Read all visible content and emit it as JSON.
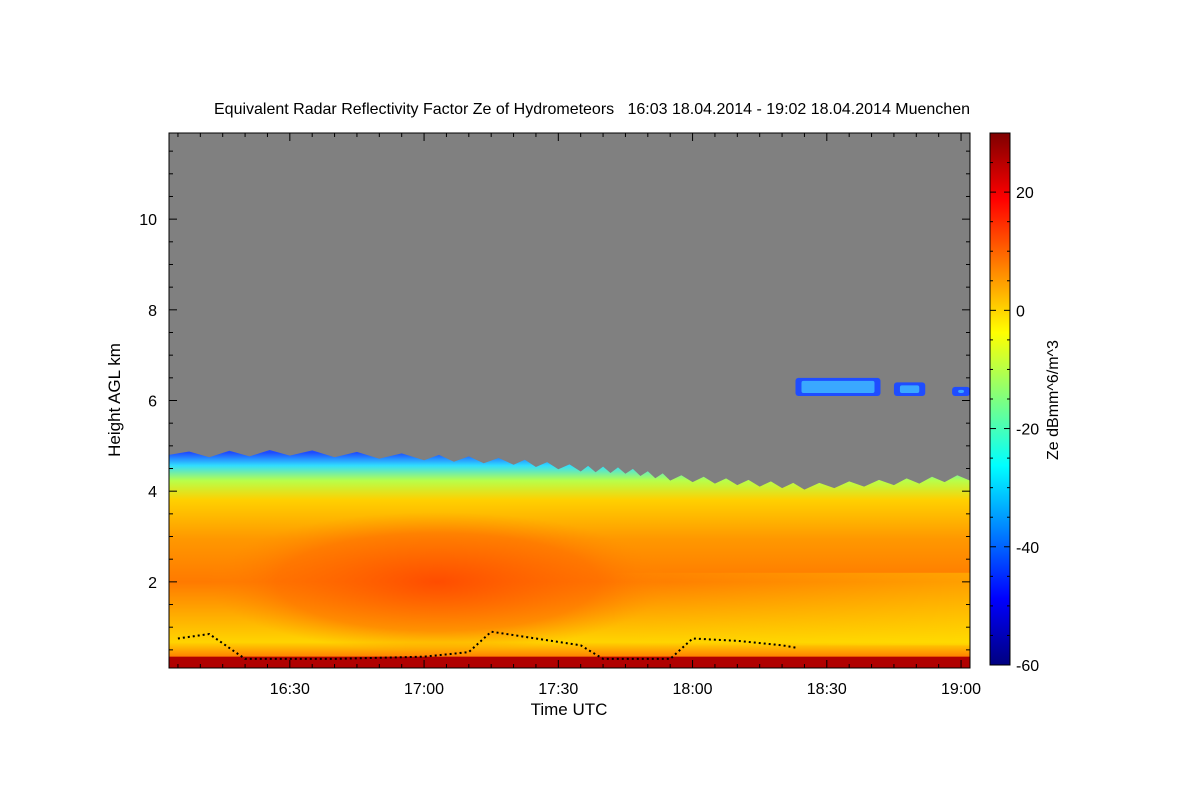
{
  "chart_data": {
    "type": "heatmap",
    "title": "Equivalent Radar Reflectivity Factor Ze of Hydrometeors   16:03 18.04.2014 - 19:02 18.04.2014 Muenchen",
    "xlabel": "Time UTC",
    "ylabel": "Height AGL km",
    "colorbar_label": "Ze dBmm^6/m^3",
    "xlim": [
      "16:03",
      "19:02"
    ],
    "ylim": [
      0.1,
      11.9
    ],
    "x_ticks": [
      "16:30",
      "17:00",
      "17:30",
      "18:00",
      "18:30",
      "19:00"
    ],
    "y_ticks": [
      "2",
      "4",
      "6",
      "8",
      "10"
    ],
    "colorbar_ticks": [
      "20",
      "0",
      "-20",
      "-40",
      "-60"
    ],
    "colorbar_range": [
      -60,
      30
    ],
    "background_color": "#808080",
    "colormap": [
      "#00007f",
      "#0000ff",
      "#007fff",
      "#00ffff",
      "#7fff7f",
      "#ffff00",
      "#ff7f00",
      "#ff0000",
      "#7f0000"
    ],
    "echo_top_km": [
      {
        "t": "16:03",
        "h": 4.8
      },
      {
        "t": "16:30",
        "h": 4.85
      },
      {
        "t": "17:00",
        "h": 4.75
      },
      {
        "t": "17:20",
        "h": 4.65
      },
      {
        "t": "17:35",
        "h": 4.5
      },
      {
        "t": "17:45",
        "h": 4.45
      },
      {
        "t": "17:55",
        "h": 4.3
      },
      {
        "t": "18:10",
        "h": 4.2
      },
      {
        "t": "18:25",
        "h": 4.1
      },
      {
        "t": "18:45",
        "h": 4.2
      },
      {
        "t": "19:02",
        "h": 4.3
      }
    ],
    "upper_cloud": [
      {
        "start": "18:23",
        "end": "18:42",
        "base_km": 6.1,
        "top_km": 6.5
      },
      {
        "start": "18:45",
        "end": "18:52",
        "base_km": 6.1,
        "top_km": 6.4
      },
      {
        "start": "18:58",
        "end": "19:02",
        "base_km": 6.1,
        "top_km": 6.3
      }
    ],
    "cloud_base_km": [
      {
        "t": "16:05",
        "h": 0.75
      },
      {
        "t": "16:12",
        "h": 0.85
      },
      {
        "t": "16:20",
        "h": 0.3
      },
      {
        "t": "16:40",
        "h": 0.3
      },
      {
        "t": "17:00",
        "h": 0.35
      },
      {
        "t": "17:10",
        "h": 0.45
      },
      {
        "t": "17:15",
        "h": 0.9
      },
      {
        "t": "17:25",
        "h": 0.75
      },
      {
        "t": "17:35",
        "h": 0.6
      },
      {
        "t": "17:40",
        "h": 0.3
      },
      {
        "t": "17:55",
        "h": 0.3
      },
      {
        "t": "18:00",
        "h": 0.75
      },
      {
        "t": "18:10",
        "h": 0.7
      },
      {
        "t": "18:20",
        "h": 0.6
      },
      {
        "t": "18:23",
        "h": 0.55
      }
    ]
  }
}
